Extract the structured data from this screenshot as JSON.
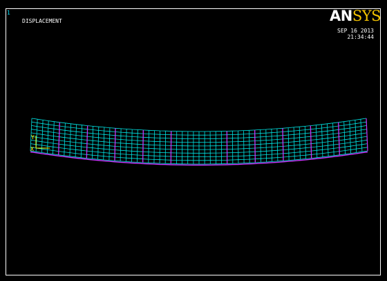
{
  "viewport": {
    "window_number": "1",
    "plot_type": "DISPLACEMENT",
    "date": "SEP 16 2013",
    "time": "21:34:44"
  },
  "logo": {
    "part1": "AN",
    "part2": "SYS"
  },
  "triad": {
    "y_label": "Y",
    "x_label": "X"
  },
  "colors": {
    "background": "#000000",
    "frame": "#ffffff",
    "deformed_mesh": "#00e5e5",
    "undeformed_edge": "#cc33ff",
    "triad": "#ffff00",
    "logo_sys": "#f4c300"
  }
}
